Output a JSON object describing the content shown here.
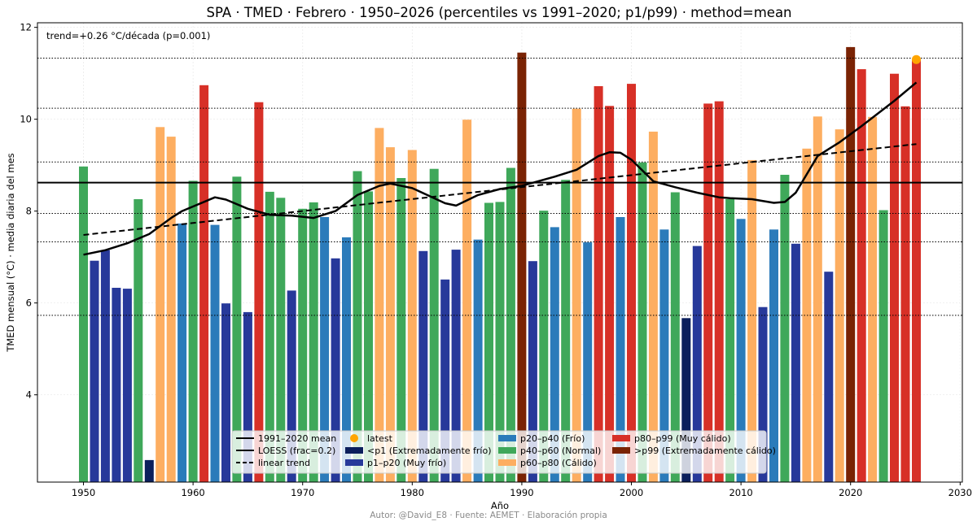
{
  "chart_data": {
    "type": "bar",
    "title": "SPA · TMED · Febrero · 1950–2026 (percentiles vs 1991–2020; p1/p99) · method=mean",
    "xlabel": "Año",
    "ylabel": "TMED mensual (°C) · media diaria del mes",
    "xlim": [
      1945.8,
      2030.2
    ],
    "ylim": [
      2.1,
      12.1
    ],
    "xticks": [
      1950,
      1960,
      1970,
      1980,
      1990,
      2000,
      2010,
      2020,
      2030
    ],
    "yticks": [
      4,
      6,
      8,
      10,
      12
    ],
    "annotation": "trend=+0.26 °C/década (p=0.001)",
    "footer": "Autor: @David_E8 · Fuente: AEMET · Elaboración propia",
    "mean_1991_2020": 8.62,
    "percentile_lines": [
      11.33,
      10.24,
      9.07,
      7.95,
      7.33,
      5.73
    ],
    "colors": {
      "lt_p1": "#0b1f5c",
      "p1_p20": "#27399a",
      "p20_p40": "#2b7bba",
      "p40_p60": "#3fa85a",
      "p60_p80": "#fdae61",
      "p80_p99": "#d73027",
      "gt_p99": "#7a2304",
      "latest": "#ffa500"
    },
    "years": [
      1950,
      1951,
      1952,
      1953,
      1954,
      1955,
      1956,
      1957,
      1958,
      1959,
      1960,
      1961,
      1962,
      1963,
      1964,
      1965,
      1966,
      1967,
      1968,
      1969,
      1970,
      1971,
      1972,
      1973,
      1974,
      1975,
      1976,
      1977,
      1978,
      1979,
      1980,
      1981,
      1982,
      1983,
      1984,
      1985,
      1986,
      1987,
      1988,
      1989,
      1990,
      1991,
      1992,
      1993,
      1994,
      1995,
      1996,
      1997,
      1998,
      1999,
      2000,
      2001,
      2002,
      2003,
      2004,
      2005,
      2006,
      2007,
      2008,
      2009,
      2010,
      2011,
      2012,
      2013,
      2014,
      2015,
      2016,
      2017,
      2018,
      2019,
      2020,
      2021,
      2022,
      2023,
      2024,
      2025,
      2026
    ],
    "values": [
      8.97,
      6.92,
      7.15,
      6.33,
      6.31,
      8.26,
      2.58,
      9.83,
      9.62,
      7.73,
      8.66,
      10.74,
      7.7,
      5.99,
      8.75,
      5.8,
      10.37,
      8.42,
      8.29,
      6.27,
      8.05,
      8.19,
      7.87,
      6.97,
      7.43,
      8.87,
      8.43,
      9.81,
      9.39,
      8.72,
      9.33,
      7.13,
      8.92,
      6.51,
      7.16,
      9.99,
      7.38,
      8.18,
      8.2,
      8.94,
      11.45,
      6.91,
      8.01,
      7.65,
      8.68,
      10.23,
      7.32,
      10.72,
      10.29,
      7.87,
      10.77,
      9.06,
      9.73,
      7.6,
      8.41,
      5.67,
      7.24,
      10.34,
      10.39,
      8.26,
      7.83,
      9.11,
      5.91,
      7.6,
      8.79,
      7.29,
      9.36,
      10.06,
      6.68,
      9.78,
      11.57,
      11.09,
      10.05,
      8.02,
      10.99,
      10.28,
      11.3
    ],
    "categories": [
      "p40_p60",
      "p1_p20",
      "p1_p20",
      "p1_p20",
      "p1_p20",
      "p40_p60",
      "lt_p1",
      "p60_p80",
      "p60_p80",
      "p20_p40",
      "p40_p60",
      "p80_p99",
      "p20_p40",
      "p1_p20",
      "p40_p60",
      "p1_p20",
      "p80_p99",
      "p40_p60",
      "p40_p60",
      "p1_p20",
      "p40_p60",
      "p40_p60",
      "p20_p40",
      "p1_p20",
      "p20_p40",
      "p40_p60",
      "p40_p60",
      "p60_p80",
      "p60_p80",
      "p40_p60",
      "p60_p80",
      "p1_p20",
      "p40_p60",
      "p1_p20",
      "p1_p20",
      "p60_p80",
      "p20_p40",
      "p40_p60",
      "p40_p60",
      "p40_p60",
      "gt_p99",
      "p1_p20",
      "p40_p60",
      "p20_p40",
      "p40_p60",
      "p60_p80",
      "p20_p40",
      "p80_p99",
      "p80_p99",
      "p20_p40",
      "p80_p99",
      "p40_p60",
      "p60_p80",
      "p20_p40",
      "p40_p60",
      "lt_p1",
      "p1_p20",
      "p80_p99",
      "p80_p99",
      "p40_p60",
      "p20_p40",
      "p60_p80",
      "p1_p20",
      "p20_p40",
      "p40_p60",
      "p1_p20",
      "p60_p80",
      "p60_p80",
      "p1_p20",
      "p60_p80",
      "gt_p99",
      "p80_p99",
      "p60_p80",
      "p40_p60",
      "p80_p99",
      "p80_p99",
      "p80_p99"
    ],
    "loess": {
      "x": [
        1950,
        1952,
        1954,
        1956,
        1958,
        1959,
        1960,
        1962,
        1963,
        1965,
        1967,
        1969,
        1971,
        1973,
        1975,
        1977,
        1978,
        1980,
        1983,
        1984,
        1986,
        1988,
        1990,
        1993,
        1995,
        1997,
        1998,
        1999,
        2000,
        2002,
        2004,
        2006,
        2008,
        2009,
        2011,
        2013,
        2014,
        2015,
        2017,
        2019,
        2021,
        2024,
        2026
      ],
      "y": [
        7.05,
        7.15,
        7.3,
        7.5,
        7.85,
        8.0,
        8.1,
        8.3,
        8.25,
        8.05,
        7.92,
        7.9,
        7.85,
        8.0,
        8.35,
        8.55,
        8.6,
        8.5,
        8.17,
        8.12,
        8.35,
        8.48,
        8.55,
        8.75,
        8.9,
        9.2,
        9.28,
        9.27,
        9.12,
        8.65,
        8.52,
        8.4,
        8.3,
        8.28,
        8.26,
        8.18,
        8.2,
        8.4,
        9.2,
        9.5,
        9.85,
        10.4,
        10.8
      ]
    },
    "trend_line": {
      "x": [
        1950,
        2026
      ],
      "y": [
        7.48,
        9.46
      ]
    },
    "latest": {
      "year": 2026,
      "value": 11.3
    },
    "legend": {
      "location": "lower center",
      "items": [
        {
          "label": "1991–2020 mean",
          "kind": "line-solid"
        },
        {
          "label": "LOESS (frac=0.2)",
          "kind": "line-solid"
        },
        {
          "label": "linear trend",
          "kind": "line-dashed"
        },
        {
          "label": "latest",
          "kind": "dot",
          "color_key": "latest"
        },
        {
          "label": "<p1 (Extremadamente frío)",
          "kind": "patch",
          "color_key": "lt_p1"
        },
        {
          "label": "p1–p20 (Muy frío)",
          "kind": "patch",
          "color_key": "p1_p20"
        },
        {
          "label": "p20–p40 (Frío)",
          "kind": "patch",
          "color_key": "p20_p40"
        },
        {
          "label": "p40–p60 (Normal)",
          "kind": "patch",
          "color_key": "p40_p60"
        },
        {
          "label": "p60–p80 (Cálido)",
          "kind": "patch",
          "color_key": "p60_p80"
        },
        {
          "label": "p80–p99 (Muy cálido)",
          "kind": "patch",
          "color_key": "p80_p99"
        },
        {
          "label": ">p99 (Extremadamente cálido)",
          "kind": "patch",
          "color_key": "gt_p99"
        }
      ]
    }
  }
}
